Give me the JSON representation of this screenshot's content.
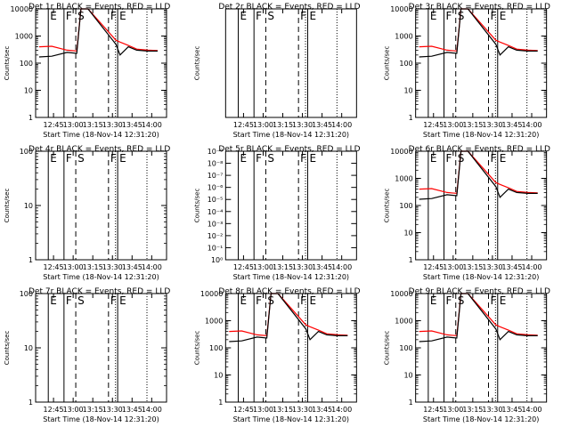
{
  "chart_data": [
    {
      "type": "line",
      "title": "Det 1r BLACK = Events, RED = LLD",
      "xlabel": "Start Time (18-Nov-14 12:31:20)",
      "ylabel": "Counts/sec",
      "x_ticks": [
        "12:45",
        "13:00",
        "13:15",
        "13:30",
        "13:45",
        "14:00"
      ],
      "y_ticks": [
        "1",
        "10",
        "100",
        "1000",
        "10000"
      ],
      "y_scale": "log",
      "ylim": [
        1,
        10000
      ],
      "xlim": [
        "12:31:20",
        "14:11:20"
      ],
      "markers": [
        {
          "label": "E",
          "time": "12:41:00",
          "style": "solid"
        },
        {
          "label": "F",
          "time": "12:53:00",
          "style": "solid"
        },
        {
          "label": "S",
          "time": "13:02:00",
          "style": "dashed"
        },
        {
          "label": "F",
          "time": "13:27:00",
          "style": "dashed"
        },
        {
          "label": "E",
          "time": "13:34:00",
          "style": "solid"
        }
      ],
      "series": [
        {
          "color": "#ff0000",
          "x_min": [
            0,
            9,
            20,
            27,
            30,
            35,
            55,
            58,
            64,
            70,
            78,
            85
          ],
          "y": [
            400,
            420,
            300,
            280,
            10000,
            10000,
            700,
            600,
            450,
            330,
            300,
            290
          ]
        },
        {
          "color": "#000000",
          "x_min": [
            0,
            9,
            20,
            27,
            30,
            35,
            55,
            58,
            64,
            70,
            78,
            85
          ],
          "y": [
            170,
            180,
            250,
            230,
            10000,
            10000,
            500,
            200,
            400,
            300,
            280,
            280
          ]
        }
      ]
    },
    {
      "type": "line",
      "title": "Det 2r BLACK = Events, RED = LLD",
      "xlabel": "Start Time (18-Nov-14 12:31:20)",
      "ylabel": "Counts/sec",
      "x_ticks": [
        "12:45",
        "13:00",
        "13:15",
        "13:30",
        "13:45",
        "14:00"
      ],
      "y_ticks": [],
      "y_scale": "log",
      "xlim": [
        "12:31:20",
        "14:11:20"
      ],
      "markers": [
        {
          "label": "E",
          "time": "12:41:00",
          "style": "solid"
        },
        {
          "label": "F",
          "time": "12:53:00",
          "style": "solid"
        },
        {
          "label": "S",
          "time": "13:02:00",
          "style": "dashed"
        },
        {
          "label": "F",
          "time": "13:27:00",
          "style": "dashed"
        },
        {
          "label": "E",
          "time": "13:34:00",
          "style": "solid"
        }
      ],
      "series": []
    },
    {
      "type": "line",
      "title": "Det 3r BLACK = Events, RED = LLD",
      "xlabel": "Start Time (18-Nov-14 12:31:20)",
      "ylabel": "Counts/sec",
      "x_ticks": [
        "12:45",
        "13:00",
        "13:15",
        "13:30",
        "13:45",
        "14:00"
      ],
      "y_ticks": [
        "1",
        "10",
        "100",
        "1000",
        "10000"
      ],
      "y_scale": "log",
      "ylim": [
        1,
        10000
      ],
      "xlim": [
        "12:31:20",
        "14:11:20"
      ],
      "markers": [
        {
          "label": "E",
          "time": "12:41:00",
          "style": "solid"
        },
        {
          "label": "F",
          "time": "12:53:00",
          "style": "solid"
        },
        {
          "label": "S",
          "time": "13:02:00",
          "style": "dashed"
        },
        {
          "label": "F",
          "time": "13:27:00",
          "style": "dashed"
        },
        {
          "label": "E",
          "time": "13:34:00",
          "style": "solid"
        }
      ],
      "series": [
        {
          "color": "#ff0000",
          "x_min": [
            0,
            9,
            20,
            27,
            30,
            35,
            55,
            58,
            64,
            70,
            78,
            85
          ],
          "y": [
            400,
            420,
            300,
            280,
            10000,
            10000,
            700,
            600,
            450,
            330,
            300,
            290
          ]
        },
        {
          "color": "#000000",
          "x_min": [
            0,
            9,
            20,
            27,
            30,
            35,
            55,
            58,
            64,
            70,
            78,
            85
          ],
          "y": [
            170,
            180,
            250,
            230,
            10000,
            10000,
            500,
            200,
            400,
            300,
            280,
            280
          ]
        }
      ]
    },
    {
      "type": "line",
      "title": "Det 4r BLACK = Events, RED = LLD",
      "xlabel": "Start Time (18-Nov-14 12:31:20)",
      "ylabel": "Counts/sec",
      "x_ticks": [
        "12:45",
        "13:00",
        "13:15",
        "13:30",
        "13:45",
        "14:00"
      ],
      "y_ticks": [
        "1",
        "10",
        "100"
      ],
      "y_scale": "log",
      "ylim": [
        1,
        100
      ],
      "xlim": [
        "12:31:20",
        "14:11:20"
      ],
      "markers": [
        {
          "label": "E",
          "time": "12:41:00",
          "style": "solid"
        },
        {
          "label": "F",
          "time": "12:53:00",
          "style": "solid"
        },
        {
          "label": "S",
          "time": "13:02:00",
          "style": "dashed"
        },
        {
          "label": "F",
          "time": "13:27:00",
          "style": "dashed"
        },
        {
          "label": "E",
          "time": "13:34:00",
          "style": "solid"
        }
      ],
      "series": []
    },
    {
      "type": "line",
      "title": "Det 5r BLACK = Events, RED = LLD",
      "xlabel": "Start Time (18-Nov-14 12:31:20)",
      "ylabel": "Counts/sec",
      "x_ticks": [
        "12:45",
        "13:00",
        "13:15",
        "13:30",
        "13:45",
        "14:00"
      ],
      "y_ticks": [
        "10⁰",
        "10⁻¹",
        "10⁻²",
        "10⁻³",
        "10⁻⁴",
        "10⁻⁵",
        "10⁻⁶",
        "10⁻⁷",
        "10⁻⁸",
        "10⁻⁹"
      ],
      "y_scale": "log",
      "xlim": [
        "12:31:20",
        "14:11:20"
      ],
      "markers": [
        {
          "label": "E",
          "time": "12:41:00",
          "style": "solid"
        },
        {
          "label": "F",
          "time": "12:53:00",
          "style": "solid"
        },
        {
          "label": "S",
          "time": "13:02:00",
          "style": "dashed"
        },
        {
          "label": "F",
          "time": "13:27:00",
          "style": "dashed"
        },
        {
          "label": "E",
          "time": "13:34:00",
          "style": "solid"
        }
      ],
      "series": []
    },
    {
      "type": "line",
      "title": "Det 6r BLACK = Events, RED = LLD",
      "xlabel": "Start Time (18-Nov-14 12:31:20)",
      "ylabel": "Counts/sec",
      "x_ticks": [
        "12:45",
        "13:00",
        "13:15",
        "13:30",
        "13:45",
        "14:00"
      ],
      "y_ticks": [
        "1",
        "10",
        "100",
        "1000",
        "10000"
      ],
      "y_scale": "log",
      "ylim": [
        1,
        10000
      ],
      "xlim": [
        "12:31:20",
        "14:11:20"
      ],
      "markers": [
        {
          "label": "E",
          "time": "12:41:00",
          "style": "solid"
        },
        {
          "label": "F",
          "time": "12:53:00",
          "style": "solid"
        },
        {
          "label": "S",
          "time": "13:02:00",
          "style": "dashed"
        },
        {
          "label": "F",
          "time": "13:27:00",
          "style": "dashed"
        },
        {
          "label": "E",
          "time": "13:34:00",
          "style": "solid"
        }
      ],
      "series": [
        {
          "color": "#ff0000",
          "x_min": [
            0,
            9,
            20,
            27,
            30,
            35,
            55,
            58,
            64,
            70,
            78,
            85
          ],
          "y": [
            400,
            420,
            300,
            280,
            10000,
            10000,
            700,
            600,
            450,
            330,
            300,
            290
          ]
        },
        {
          "color": "#000000",
          "x_min": [
            0,
            9,
            20,
            27,
            30,
            35,
            55,
            58,
            64,
            70,
            78,
            85
          ],
          "y": [
            170,
            180,
            250,
            230,
            10000,
            10000,
            500,
            200,
            400,
            300,
            280,
            280
          ]
        }
      ]
    },
    {
      "type": "line",
      "title": "Det 7r BLACK = Events, RED = LLD",
      "xlabel": "Start Time (18-Nov-14 12:31:20)",
      "ylabel": "Counts/sec",
      "x_ticks": [
        "12:45",
        "13:00",
        "13:15",
        "13:30",
        "13:45",
        "14:00"
      ],
      "y_ticks": [
        "1",
        "10",
        "100"
      ],
      "y_scale": "log",
      "ylim": [
        1,
        100
      ],
      "xlim": [
        "12:31:20",
        "14:11:20"
      ],
      "markers": [
        {
          "label": "E",
          "time": "12:41:00",
          "style": "solid"
        },
        {
          "label": "F",
          "time": "12:53:00",
          "style": "solid"
        },
        {
          "label": "S",
          "time": "13:02:00",
          "style": "dashed"
        },
        {
          "label": "F",
          "time": "13:27:00",
          "style": "dashed"
        },
        {
          "label": "E",
          "time": "13:34:00",
          "style": "solid"
        }
      ],
      "series": []
    },
    {
      "type": "line",
      "title": "Det 8r BLACK = Events, RED = LLD",
      "xlabel": "Start Time (18-Nov-14 12:31:20)",
      "ylabel": "Counts/sec",
      "x_ticks": [
        "12:45",
        "13:00",
        "13:15",
        "13:30",
        "13:45",
        "14:00"
      ],
      "y_ticks": [
        "1",
        "10",
        "100",
        "1000",
        "10000"
      ],
      "y_scale": "log",
      "ylim": [
        1,
        10000
      ],
      "xlim": [
        "12:31:20",
        "14:11:20"
      ],
      "markers": [
        {
          "label": "E",
          "time": "12:41:00",
          "style": "solid"
        },
        {
          "label": "F",
          "time": "12:53:00",
          "style": "solid"
        },
        {
          "label": "S",
          "time": "13:02:00",
          "style": "dashed"
        },
        {
          "label": "F",
          "time": "13:27:00",
          "style": "dashed"
        },
        {
          "label": "E",
          "time": "13:34:00",
          "style": "solid"
        }
      ],
      "series": [
        {
          "color": "#ff0000",
          "x_min": [
            0,
            9,
            20,
            27,
            30,
            35,
            55,
            58,
            64,
            70,
            78,
            85
          ],
          "y": [
            400,
            420,
            300,
            280,
            10000,
            10000,
            700,
            600,
            450,
            330,
            300,
            290
          ]
        },
        {
          "color": "#000000",
          "x_min": [
            0,
            9,
            20,
            27,
            30,
            35,
            55,
            58,
            64,
            70,
            78,
            85
          ],
          "y": [
            170,
            180,
            250,
            230,
            10000,
            10000,
            500,
            200,
            400,
            300,
            280,
            280
          ]
        }
      ]
    },
    {
      "type": "line",
      "title": "Det 9r BLACK = Events, RED = LLD",
      "xlabel": "Start Time (18-Nov-14 12:31:20)",
      "ylabel": "Counts/sec",
      "x_ticks": [
        "12:45",
        "13:00",
        "13:15",
        "13:30",
        "13:45",
        "14:00"
      ],
      "y_ticks": [
        "1",
        "10",
        "100",
        "1000",
        "10000"
      ],
      "y_scale": "log",
      "ylim": [
        1,
        10000
      ],
      "xlim": [
        "12:31:20",
        "14:11:20"
      ],
      "markers": [
        {
          "label": "E",
          "time": "12:41:00",
          "style": "solid"
        },
        {
          "label": "F",
          "time": "12:53:00",
          "style": "solid"
        },
        {
          "label": "S",
          "time": "13:02:00",
          "style": "dashed"
        },
        {
          "label": "F",
          "time": "13:27:00",
          "style": "dashed"
        },
        {
          "label": "E",
          "time": "13:34:00",
          "style": "solid"
        }
      ],
      "series": [
        {
          "color": "#ff0000",
          "x_min": [
            0,
            9,
            20,
            27,
            30,
            35,
            55,
            58,
            64,
            70,
            78,
            85
          ],
          "y": [
            400,
            420,
            300,
            280,
            10000,
            10000,
            700,
            600,
            450,
            330,
            300,
            290
          ]
        },
        {
          "color": "#000000",
          "x_min": [
            0,
            9,
            20,
            27,
            30,
            35,
            55,
            58,
            64,
            70,
            78,
            85
          ],
          "y": [
            170,
            180,
            250,
            230,
            10000,
            10000,
            500,
            200,
            400,
            300,
            280,
            280
          ]
        }
      ]
    }
  ]
}
